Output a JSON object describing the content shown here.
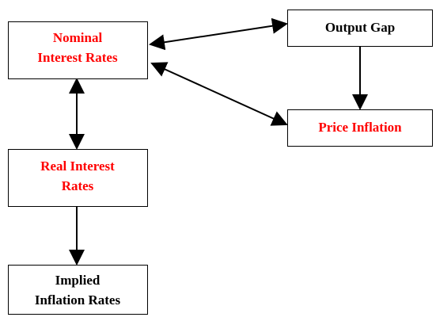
{
  "nodes": [
    {
      "lines": [
        "Nominal",
        "Interest Rates"
      ]
    },
    {
      "lines": [
        "Output Gap"
      ]
    },
    {
      "lines": [
        "Price Inflation"
      ]
    },
    {
      "lines": [
        "Real Interest",
        "Rates"
      ]
    },
    {
      "lines": [
        "Implied",
        "Inflation Rates"
      ]
    }
  ]
}
